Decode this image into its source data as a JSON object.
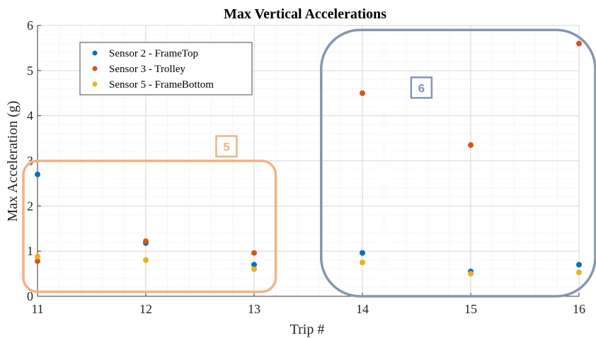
{
  "chart_data": {
    "type": "scatter",
    "title": "Max Vertical Accelerations",
    "xlabel": "Trip #",
    "ylabel": "Max Acceleration (g)",
    "xlim": [
      11,
      16
    ],
    "ylim": [
      0,
      6
    ],
    "xticks": [
      "11",
      "12",
      "13",
      "14",
      "15",
      "16"
    ],
    "yticks": [
      "0",
      "1",
      "2",
      "3",
      "4",
      "5",
      "6"
    ],
    "grid": true,
    "legend_position": "top-left",
    "series": [
      {
        "name": "Sensor 2 - FrameTop",
        "color": "#0072BD",
        "x": [
          11,
          12,
          13,
          14,
          15,
          16
        ],
        "y": [
          2.7,
          1.18,
          0.7,
          0.96,
          0.55,
          0.7
        ]
      },
      {
        "name": "Sensor 3 - Trolley",
        "color": "#D95319",
        "x": [
          11,
          12,
          13,
          14,
          15,
          16
        ],
        "y": [
          0.78,
          1.22,
          0.96,
          4.5,
          3.35,
          5.6
        ]
      },
      {
        "name": "Sensor 5 - FrameBottom",
        "color": "#EDB120",
        "x": [
          11,
          12,
          13,
          14,
          15,
          16
        ],
        "y": [
          0.88,
          0.8,
          0.6,
          0.75,
          0.5,
          0.53
        ]
      }
    ],
    "annotations": [
      {
        "label": "5",
        "color": "#F4B183",
        "x_range": [
          11,
          13.2
        ],
        "y_range": [
          0.1,
          3.0
        ]
      },
      {
        "label": "6",
        "color": "#8497B0",
        "x_range": [
          13.75,
          16.15
        ],
        "y_range": [
          0,
          5.9
        ]
      }
    ]
  }
}
